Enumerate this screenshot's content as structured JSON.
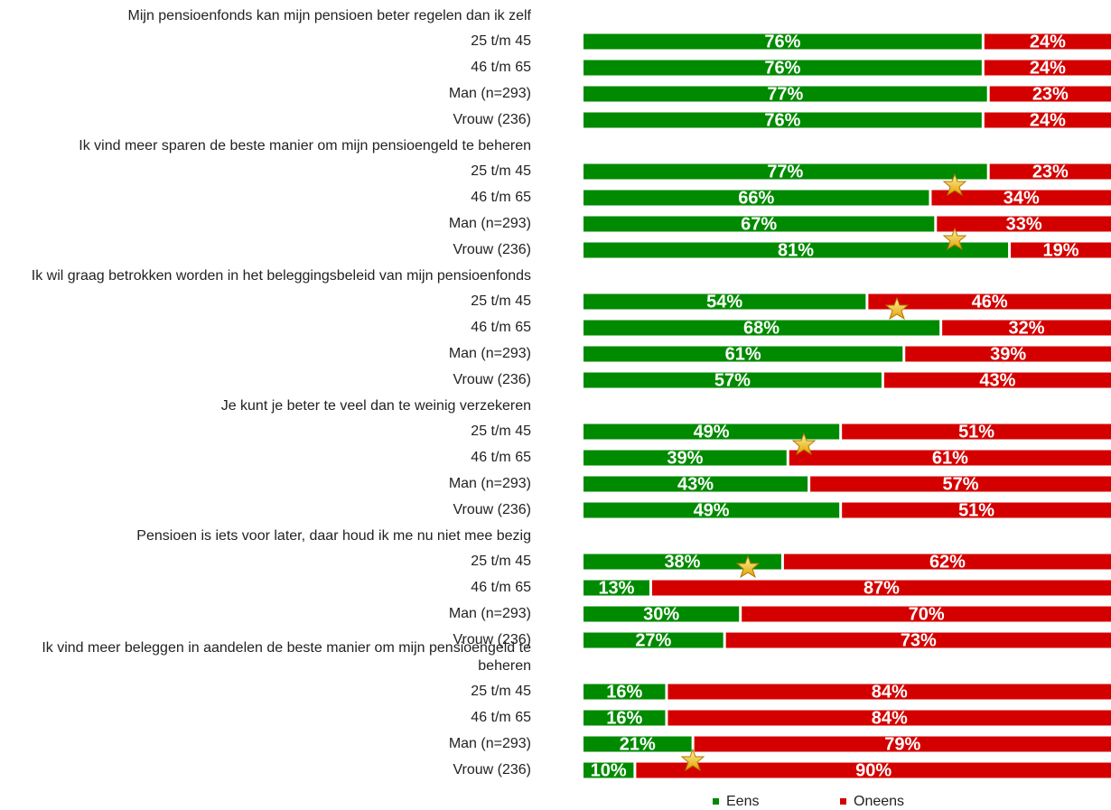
{
  "chart_data": {
    "type": "stacked_bar",
    "groups": [
      {
        "label": "Mijn pensioenfonds kan mijn pensioen beter regelen dan ik zelf",
        "categories": [
          "25 t/m 45",
          "46 t/m 65",
          "Man (n=293)",
          "Vrouw (236)"
        ]
      },
      {
        "label": "Ik vind meer sparen de beste manier om mijn pensioengeld te beheren",
        "categories": [
          "25 t/m 45",
          "46 t/m 65",
          "Man (n=293)",
          "Vrouw (236)"
        ]
      },
      {
        "label": "Ik wil graag betrokken worden in het beleggingsbeleid van mijn pensioenfonds",
        "categories": [
          "25 t/m 45",
          "46 t/m 65",
          "Man (n=293)",
          "Vrouw (236)"
        ]
      },
      {
        "label": "Je kunt je beter te veel dan te weinig verzekeren",
        "categories": [
          "25 t/m 45",
          "46 t/m 65",
          "Man (n=293)",
          "Vrouw (236)"
        ]
      },
      {
        "label": "Pensioen is iets voor later, daar houd ik me nu niet mee bezig",
        "categories": [
          "25 t/m 45",
          "46 t/m 65",
          "Man (n=293)",
          "Vrouw (236)"
        ]
      },
      {
        "label": "Ik vind meer beleggen in aandelen de beste manier om mijn pensioengeld te beheren",
        "categories": [
          "25 t/m 45",
          "46 t/m 65",
          "Man (n=293)",
          "Vrouw (236)"
        ]
      }
    ],
    "series": [
      {
        "name": "Eens",
        "color": "#008a00",
        "values": [
          76,
          76,
          77,
          76,
          77,
          66,
          67,
          81,
          54,
          68,
          61,
          57,
          49,
          39,
          43,
          49,
          38,
          13,
          30,
          27,
          16,
          16,
          21,
          10
        ],
        "value_labels": [
          "76%",
          "76%",
          "77%",
          "76%",
          "77%",
          "66%",
          "67%",
          "81%",
          "54%",
          "68%",
          "61%",
          "57%",
          "49%",
          "39%",
          "43%",
          "49%",
          "38%",
          "13%",
          "30%",
          "27%",
          "16%",
          "16%",
          "21%",
          "10%"
        ]
      },
      {
        "name": "Oneens",
        "color": "#d40000",
        "values": [
          24,
          24,
          23,
          24,
          23,
          34,
          33,
          19,
          46,
          32,
          39,
          43,
          51,
          61,
          57,
          51,
          62,
          87,
          70,
          73,
          84,
          84,
          79,
          90
        ],
        "value_labels": [
          "24%",
          "24%",
          "23%",
          "24%",
          "23%",
          "34%",
          "33%",
          "19%",
          "46%",
          "32%",
          "39%",
          "43%",
          "51%",
          "61%",
          "57%",
          "51%",
          "62%",
          "87%",
          "70%",
          "73%",
          "84%",
          "84%",
          "79%",
          "90%"
        ]
      }
    ]
  }
}
